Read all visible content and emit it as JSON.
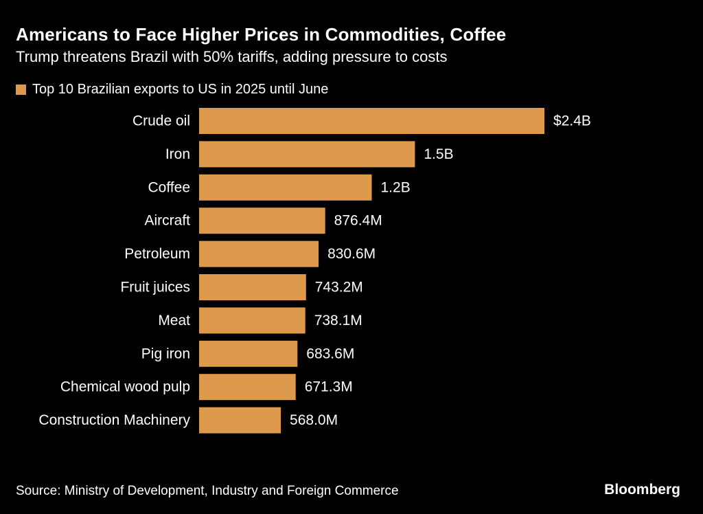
{
  "header": {
    "title": "Americans to Face Higher Prices in Commodities, Coffee",
    "subtitle": "Trump threatens Brazil with 50% tariffs, adding pressure to costs"
  },
  "legend": {
    "label": "Top 10 Brazilian exports to US in 2025 until June"
  },
  "footer": {
    "source": "Source: Ministry of Development, Industry and Foreign Commerce",
    "brand": "Bloomberg"
  },
  "colors": {
    "background": "#000000",
    "bar": "#DE9A4C",
    "text": "#FFFFFF"
  },
  "chart_data": {
    "type": "bar",
    "orientation": "horizontal",
    "categories": [
      "Crude oil",
      "Iron",
      "Coffee",
      "Aircraft",
      "Petroleum",
      "Fruit juices",
      "Meat",
      "Pig iron",
      "Chemical wood pulp",
      "Construction Machinery"
    ],
    "series": [
      {
        "name": "Top 10 Brazilian exports to US in 2025 until June",
        "values": [
          2.4,
          1.5,
          1.2,
          0.8764,
          0.8306,
          0.7432,
          0.7381,
          0.6836,
          0.6713,
          0.568
        ],
        "labels": [
          "$2.4B",
          "1.5B",
          "1.2B",
          "876.4M",
          "830.6M",
          "743.2M",
          "738.1M",
          "683.6M",
          "671.3M",
          "568.0M"
        ]
      }
    ],
    "unit": "USD billions",
    "xlim": [
      0,
      2.4
    ],
    "grid": false,
    "legend_position": "top-left"
  }
}
